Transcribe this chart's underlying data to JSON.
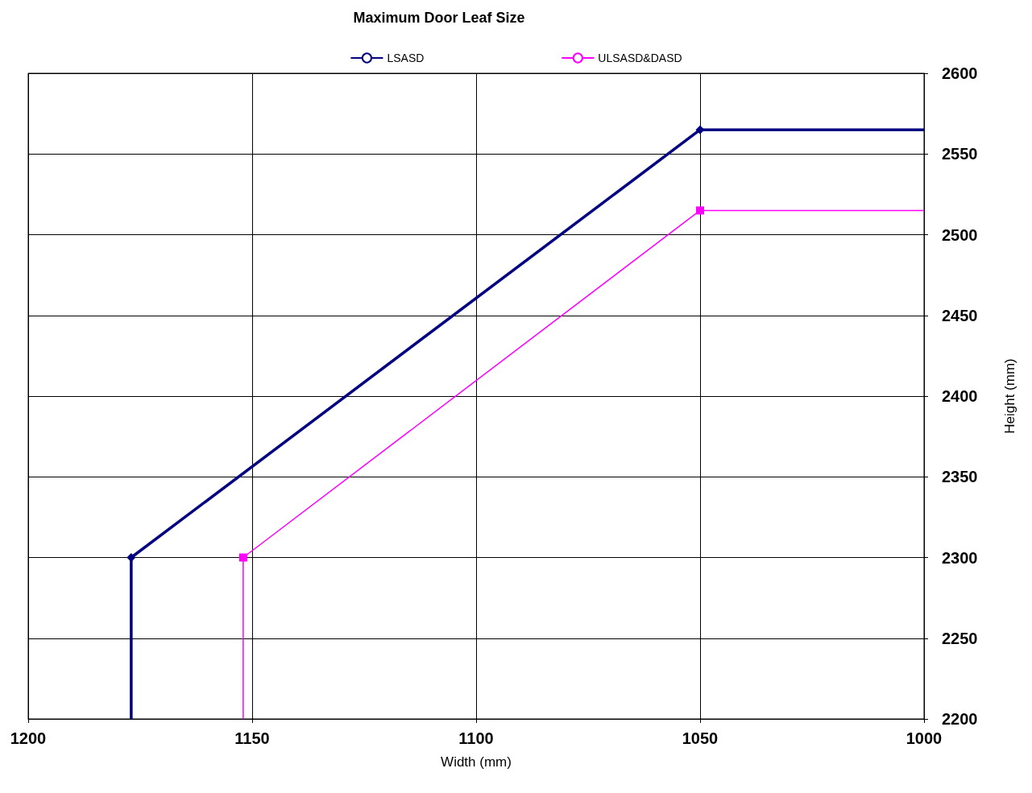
{
  "chart_data": {
    "type": "line",
    "title": "Maximum Door Leaf Size",
    "xlabel": "Width (mm)",
    "ylabel": "Height (mm)",
    "xlim": [
      1200,
      1000
    ],
    "xticks": [
      1200,
      1150,
      1100,
      1050,
      1000
    ],
    "ylim": [
      2200,
      2600
    ],
    "yticks": [
      2200,
      2250,
      2300,
      2350,
      2400,
      2450,
      2500,
      2550,
      2600
    ],
    "grid": true,
    "legend": "top",
    "series": [
      {
        "name": "LSASD",
        "color": "#000080",
        "marker": "diamond",
        "x": [
          1177,
          1177,
          1050,
          1000
        ],
        "values": [
          2200,
          2300,
          2565,
          2565
        ]
      },
      {
        "name": "ULSASD&DASD",
        "color": "#ff00ff",
        "marker": "square",
        "x": [
          1152,
          1152,
          1050,
          1000
        ],
        "values": [
          2200,
          2300,
          2515,
          2515
        ]
      }
    ]
  }
}
